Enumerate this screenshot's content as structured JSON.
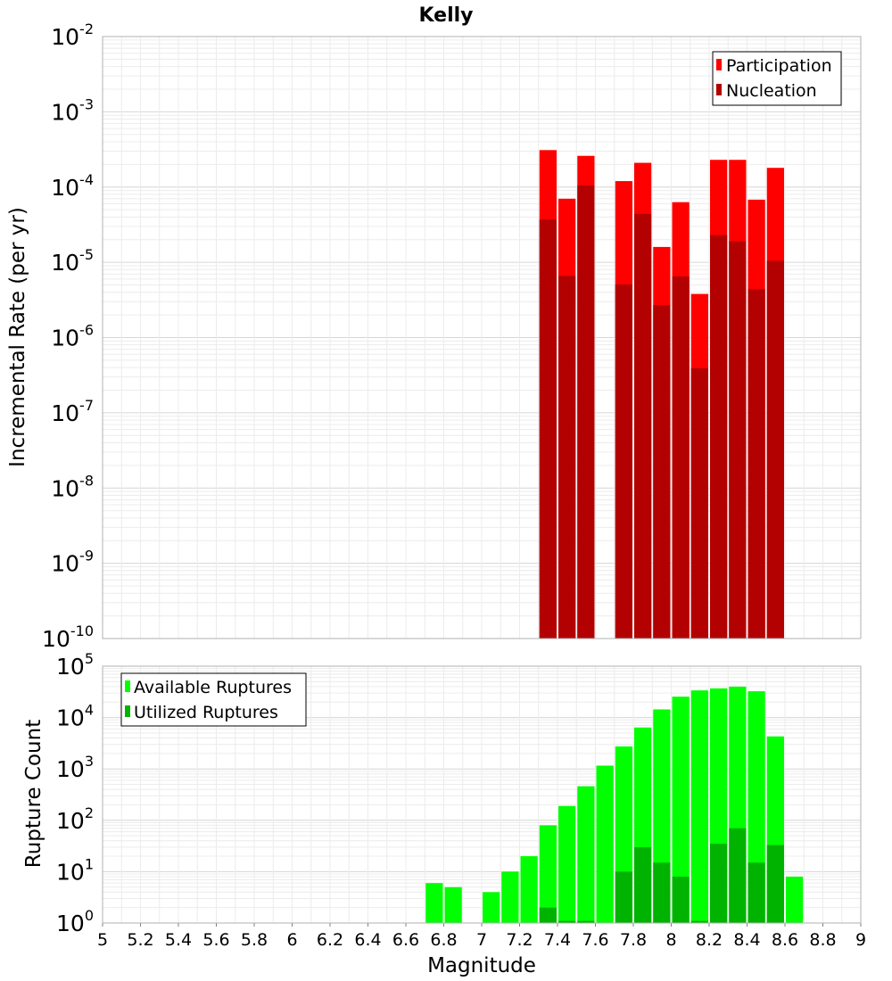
{
  "chart_data": [
    {
      "type": "bar",
      "title": "Kelly",
      "xlabel": "",
      "ylabel": "Incremental Rate (per yr)",
      "yscale": "log",
      "ylim": [
        1e-10,
        0.01
      ],
      "xlim": [
        5,
        9
      ],
      "bin_width": 0.1,
      "y_tick_exponents": [
        "-10",
        "-9",
        "-8",
        "-7",
        "-6",
        "-5",
        "-4",
        "-3",
        "-2"
      ],
      "y_tick_base": "10",
      "legend_position": "top-right",
      "series": [
        {
          "name": "Participation",
          "color": "#ff0000",
          "x": [
            7.35,
            7.45,
            7.55,
            7.75,
            7.85,
            7.95,
            8.05,
            8.15,
            8.25,
            8.35,
            8.45,
            8.55
          ],
          "values": [
            0.00031,
            7e-05,
            0.00026,
            0.00012,
            0.00021,
            1.6e-05,
            6.3e-05,
            3.8e-06,
            0.00023,
            0.00023,
            6.8e-05,
            0.00018
          ]
        },
        {
          "name": "Nucleation",
          "color": "#b30000",
          "x": [
            7.35,
            7.45,
            7.55,
            7.75,
            7.85,
            7.95,
            8.05,
            8.15,
            8.25,
            8.35,
            8.45,
            8.55
          ],
          "values": [
            3.7e-05,
            6.6e-06,
            0.000105,
            5.1e-06,
            4.4e-05,
            2.7e-06,
            6.5e-06,
            3.9e-07,
            2.3e-05,
            1.9e-05,
            4.4e-06,
            1.05e-05
          ]
        }
      ]
    },
    {
      "type": "bar",
      "title": "",
      "xlabel": "Magnitude",
      "ylabel": "Rupture Count",
      "yscale": "log",
      "ylim": [
        1,
        100000
      ],
      "xlim": [
        5,
        9
      ],
      "bin_width": 0.1,
      "x_ticks": [
        "5",
        "5.2",
        "5.4",
        "5.6",
        "5.8",
        "6",
        "6.2",
        "6.4",
        "6.6",
        "6.8",
        "7",
        "7.2",
        "7.4",
        "7.6",
        "7.8",
        "8",
        "8.2",
        "8.4",
        "8.6",
        "8.8",
        "9"
      ],
      "y_tick_exponents": [
        "0",
        "1",
        "2",
        "3",
        "4",
        "5"
      ],
      "y_tick_base": "10",
      "legend_position": "top-left",
      "series": [
        {
          "name": "Available Ruptures",
          "color": "#00ff00",
          "x": [
            6.75,
            6.85,
            7.05,
            7.15,
            7.25,
            7.35,
            7.45,
            7.55,
            7.65,
            7.75,
            7.85,
            7.95,
            8.05,
            8.15,
            8.25,
            8.35,
            8.45,
            8.55,
            8.65
          ],
          "values": [
            6,
            5,
            4,
            10,
            20,
            80,
            190,
            460,
            1160,
            2740,
            6400,
            14400,
            25500,
            33800,
            37000,
            40000,
            32500,
            4300,
            8
          ]
        },
        {
          "name": "Utilized Ruptures",
          "color": "#00b300",
          "x": [
            7.35,
            7.45,
            7.55,
            7.75,
            7.85,
            7.95,
            8.05,
            8.15,
            8.25,
            8.35,
            8.45,
            8.55
          ],
          "values": [
            2,
            1.1,
            1.1,
            10,
            30,
            15,
            8,
            1.1,
            35,
            70,
            15,
            33
          ]
        }
      ]
    }
  ]
}
